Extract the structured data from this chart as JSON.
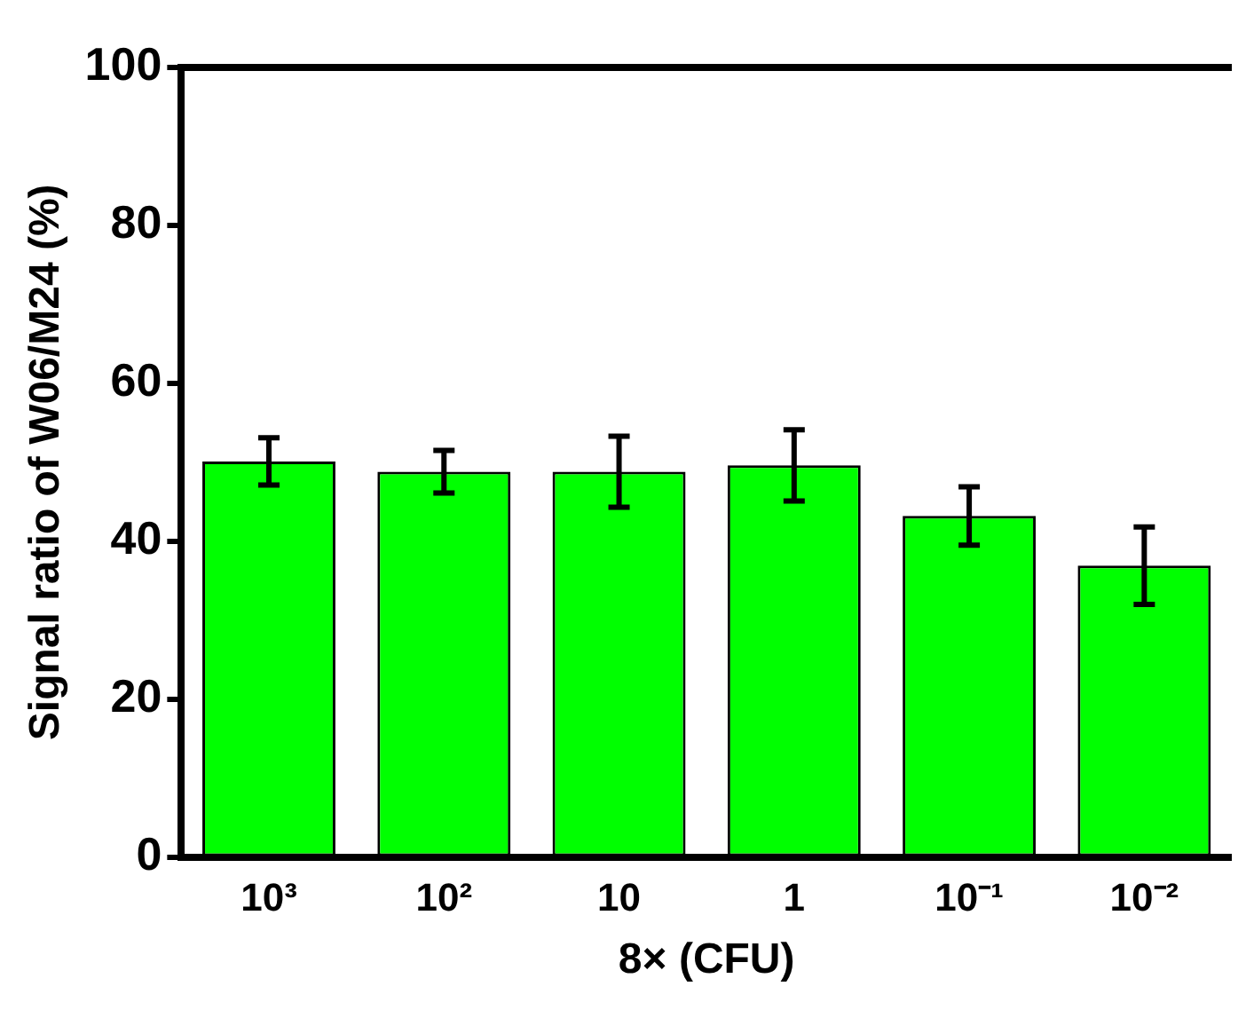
{
  "chart_data": {
    "type": "bar",
    "xlabel": "8× (CFU)",
    "ylabel": "Signal ratio of W06/M24 (%)",
    "categories": [
      "10³",
      "10²",
      "10",
      "1",
      "10⁻¹",
      "10⁻²"
    ],
    "values": [
      50.1,
      48.8,
      48.8,
      49.6,
      43.2,
      36.9
    ],
    "errors": [
      3,
      2.7,
      4.5,
      4.5,
      3.7,
      4.9
    ],
    "color": "#00ff00",
    "ylim": [
      0,
      100
    ],
    "yticks": [
      0,
      20,
      40,
      60,
      80,
      100
    ],
    "grid": false,
    "legend": false
  }
}
